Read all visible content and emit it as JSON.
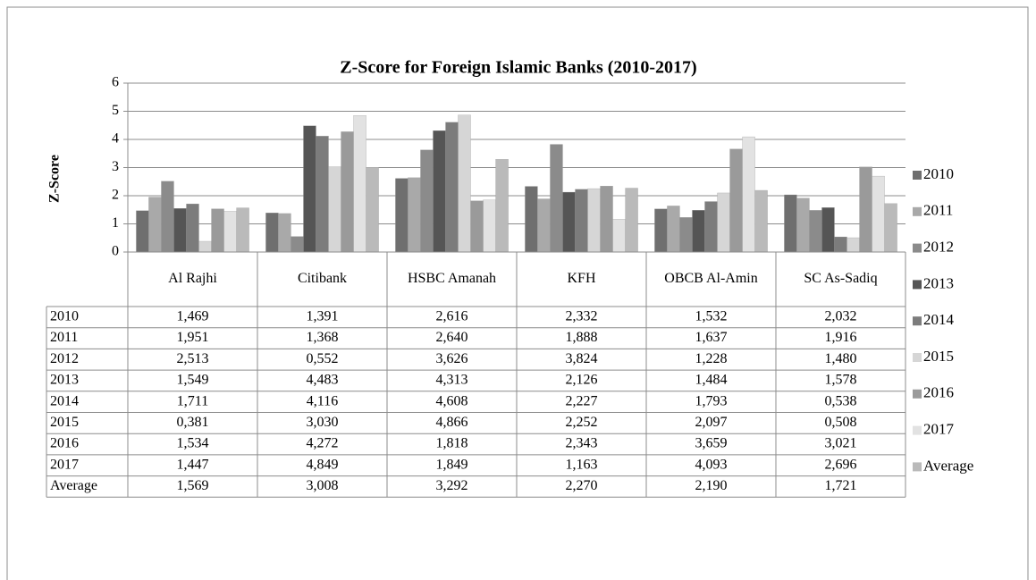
{
  "chart_data": {
    "type": "bar",
    "title": "Z-Score for Foreign Islamic Banks (2010-2017)",
    "y_label": "Z-Score",
    "categories": [
      "Al Rajhi",
      "Citibank",
      "HSBC Amanah",
      "KFH",
      "OBCB Al-Amin",
      "SC As-Sadiq"
    ],
    "ylim": [
      0,
      6
    ],
    "yticks": [
      0,
      1,
      2,
      3,
      4,
      5,
      6
    ],
    "grid": true,
    "legend": "right",
    "series": [
      {
        "name": "2010",
        "color": "#6f6f6f",
        "values": [
          1.469,
          1.391,
          2.616,
          2.332,
          1.532,
          2.032
        ],
        "value_labels": [
          "1,469",
          "1,391",
          "2,616",
          "2,332",
          "1,532",
          "2,032"
        ]
      },
      {
        "name": "2011",
        "color": "#a9a9a9",
        "values": [
          1.951,
          1.368,
          2.64,
          1.888,
          1.637,
          1.916
        ],
        "value_labels": [
          "1,951",
          "1,368",
          "2,640",
          "1,888",
          "1,637",
          "1,916"
        ]
      },
      {
        "name": "2012",
        "color": "#8b8b8b",
        "values": [
          2.513,
          0.552,
          3.626,
          3.824,
          1.228,
          1.48
        ],
        "value_labels": [
          "2,513",
          "0,552",
          "3,626",
          "3,824",
          "1,228",
          "1,480"
        ]
      },
      {
        "name": "2013",
        "color": "#555555",
        "values": [
          1.549,
          4.483,
          4.313,
          2.126,
          1.484,
          1.578
        ],
        "value_labels": [
          "1,549",
          "4,483",
          "4,313",
          "2,126",
          "1,484",
          "1,578"
        ]
      },
      {
        "name": "2014",
        "color": "#7c7c7c",
        "values": [
          1.711,
          4.116,
          4.608,
          2.227,
          1.793,
          0.538
        ],
        "value_labels": [
          "1,711",
          "4,116",
          "4,608",
          "2,227",
          "1,793",
          "0,538"
        ]
      },
      {
        "name": "2015",
        "color": "#d6d6d6",
        "values": [
          0.381,
          3.03,
          4.866,
          2.252,
          2.097,
          0.508
        ],
        "value_labels": [
          "0,381",
          "3,030",
          "4,866",
          "2,252",
          "2,097",
          "0,508"
        ]
      },
      {
        "name": "2016",
        "color": "#9a9a9a",
        "values": [
          1.534,
          4.272,
          1.818,
          2.343,
          3.659,
          3.021
        ],
        "value_labels": [
          "1,534",
          "4,272",
          "1,818",
          "2,343",
          "3,659",
          "3,021"
        ]
      },
      {
        "name": "2017",
        "color": "#e2e2e2",
        "values": [
          1.447,
          4.849,
          1.849,
          1.163,
          4.093,
          2.696
        ],
        "value_labels": [
          "1,447",
          "4,849",
          "1,849",
          "1,163",
          "4,093",
          "2,696"
        ]
      },
      {
        "name": "Average",
        "color": "#bababa",
        "values": [
          1.569,
          3.008,
          3.292,
          2.27,
          2.19,
          1.721
        ],
        "value_labels": [
          "1,569",
          "3,008",
          "3,292",
          "2,270",
          "2,190",
          "1,721"
        ]
      }
    ]
  }
}
